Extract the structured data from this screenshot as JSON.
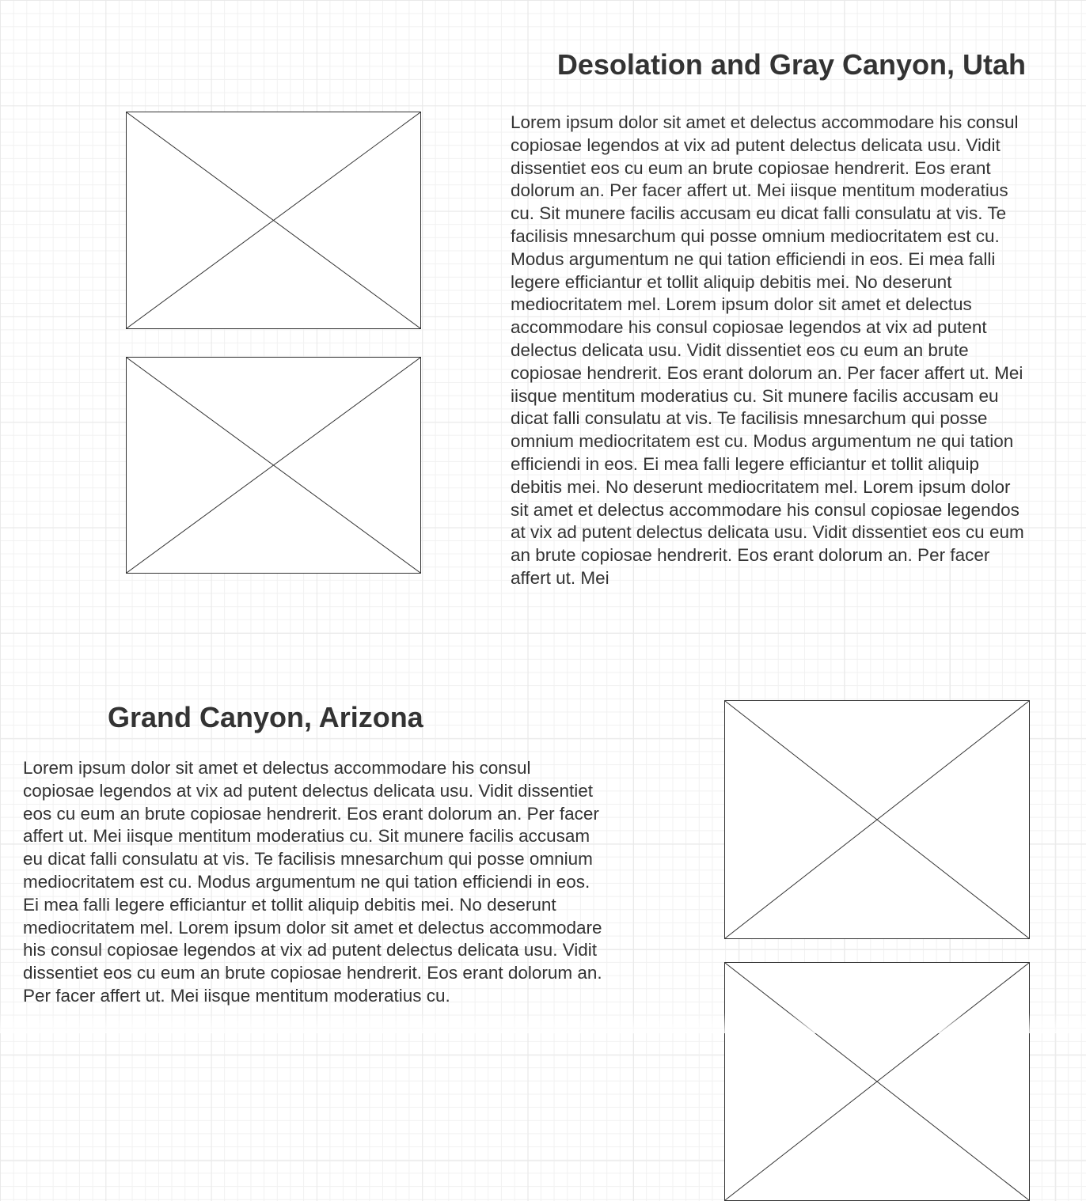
{
  "section1": {
    "title": "Desolation and Gray Canyon, Utah",
    "body": "Lorem ipsum dolor sit amet et delectus accommodare his consul copiosae legendos at vix ad putent delectus delicata usu. Vidit dissentiet eos cu eum an brute copiosae hendrerit. Eos erant dolorum an. Per facer affert ut. Mei iisque mentitum moderatius cu. Sit munere facilis accusam eu dicat falli consulatu at vis. Te facilisis mnesarchum qui posse omnium mediocritatem est cu. Modus argumentum ne qui tation efficiendi in eos. Ei mea falli legere efficiantur et tollit aliquip debitis mei. No deserunt mediocritatem mel. Lorem ipsum dolor sit amet et delectus accommodare his consul copiosae legendos at vix ad putent delectus delicata usu. Vidit dissentiet eos cu eum an brute copiosae hendrerit. Eos erant dolorum an. Per facer affert ut. Mei iisque mentitum moderatius cu. Sit munere facilis accusam eu dicat falli consulatu at vis. Te facilisis mnesarchum qui posse omnium mediocritatem est cu. Modus argumentum ne qui tation efficiendi in eos. Ei mea falli legere efficiantur et tollit aliquip debitis mei. No deserunt mediocritatem mel. Lorem ipsum dolor sit amet et delectus accommodare his consul copiosae legendos at vix ad putent delectus delicata usu. Vidit dissentiet eos cu eum an brute copiosae hendrerit. Eos erant dolorum an. Per facer affert ut. Mei"
  },
  "section2": {
    "title": "Grand Canyon, Arizona",
    "body": "Lorem ipsum dolor sit amet et delectus accommodare his consul copiosae legendos at vix ad putent delectus delicata usu. Vidit dissentiet eos cu eum an brute copiosae hendrerit. Eos erant dolorum an. Per facer affert ut. Mei iisque mentitum moderatius cu. Sit munere facilis accusam eu dicat falli consulatu at vis. Te facilisis mnesarchum qui posse omnium mediocritatem est cu. Modus argumentum ne qui tation efficiendi in eos. Ei mea falli legere efficiantur et tollit aliquip debitis mei. No deserunt mediocritatem mel. Lorem ipsum dolor sit amet et delectus accommodare his consul copiosae legendos at vix ad putent delectus delicata usu. Vidit dissentiet eos cu eum an brute copiosae hendrerit. Eos erant dolorum an. Per facer affert ut. Mei iisque mentitum moderatius cu."
  },
  "icons": {
    "image_placeholder": "image-placeholder-icon"
  },
  "colors": {
    "text": "#333333",
    "grid_major": "#e9e9e9",
    "grid_minor": "#f1f1f1",
    "placeholder_stroke": "#333333"
  }
}
